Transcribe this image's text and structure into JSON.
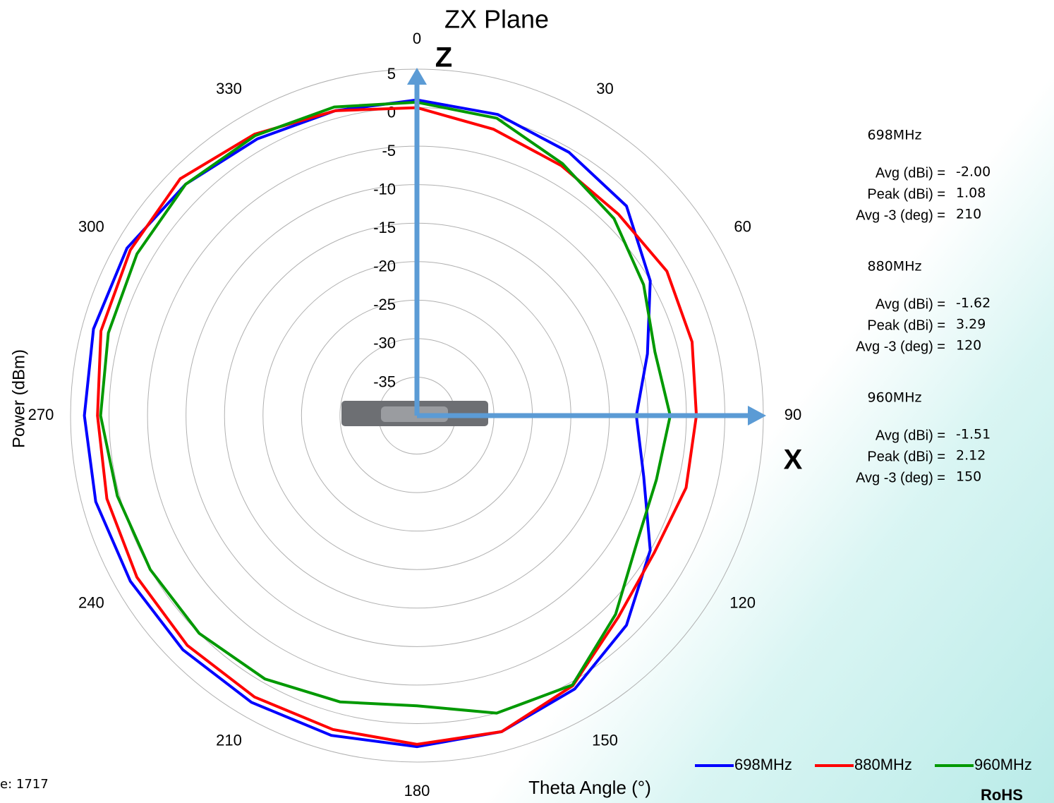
{
  "chart_data": {
    "type": "polar",
    "title": "ZX Plane",
    "y_axis_label": "Power (dBm)",
    "x_axis_label": "Theta  Angle (°)",
    "axis_labels": [
      "Z",
      "X"
    ],
    "x": [
      0,
      15,
      30,
      45,
      60,
      75,
      90,
      105,
      120,
      135,
      150,
      165,
      180,
      195,
      210,
      225,
      240,
      255,
      270,
      285,
      300,
      315,
      330,
      345
    ],
    "xticks": [
      0,
      30,
      60,
      90,
      120,
      150,
      180,
      210,
      240,
      270,
      300,
      330
    ],
    "ylim": [
      -40,
      5
    ],
    "yticks": [
      -40,
      -35,
      -30,
      -25,
      -20,
      -15,
      -10,
      -5,
      0,
      5
    ],
    "grid": true,
    "series": [
      {
        "name": "698MHz",
        "color": "#0000ff",
        "values": [
          1,
          0.5,
          -0.5,
          -1.5,
          -5,
          -9,
          -11.5,
          -9.5,
          -5,
          -1.5,
          1,
          2.5,
          3,
          3,
          3,
          3,
          3,
          3.2,
          3.2,
          3.5,
          3.5,
          2.5,
          1.5,
          1
        ]
      },
      {
        "name": "880MHz",
        "color": "#ff0000",
        "values": [
          0,
          -1.5,
          -2.5,
          -3,
          -2.5,
          -3,
          -3.7,
          -3.8,
          -4.4,
          -3,
          0.5,
          2.5,
          2.7,
          2.2,
          2.2,
          2.2,
          2,
          1.7,
          1.5,
          2.5,
          3,
          3.5,
          2.2,
          1
        ]
      },
      {
        "name": "960MHz",
        "color": "#009900",
        "values": [
          0.7,
          0,
          -2.2,
          -3.8,
          -6,
          -8,
          -7.1,
          -7.8,
          -7,
          -3.5,
          0.4,
          0,
          -2.3,
          -1.5,
          -0.5,
          0,
          0,
          0.3,
          1.1,
          1.5,
          2,
          2.5,
          2,
          1.5
        ]
      }
    ],
    "legend": "bottom-right",
    "stats": [
      {
        "band": "698MHz",
        "rows": [
          {
            "label": "Avg (dBi) =",
            "value": "-2.00"
          },
          {
            "label": "Peak (dBi) =",
            "value": "1.08"
          },
          {
            "label": "Avg -3 (deg) =",
            "value": "210"
          }
        ]
      },
      {
        "band": "880MHz",
        "rows": [
          {
            "label": "Avg (dBi) =",
            "value": "-1.62"
          },
          {
            "label": "Peak (dBi) =",
            "value": "3.29"
          },
          {
            "label": "Avg -3 (deg) =",
            "value": "120"
          }
        ]
      },
      {
        "band": "960MHz",
        "rows": [
          {
            "label": "Avg (dBi) =",
            "value": "-1.51"
          },
          {
            "label": "Peak (dBi) =",
            "value": "2.12"
          },
          {
            "label": "Avg -3 (deg) =",
            "value": "150"
          }
        ]
      }
    ],
    "footer": "e: 1717",
    "logo": "RoHS"
  }
}
